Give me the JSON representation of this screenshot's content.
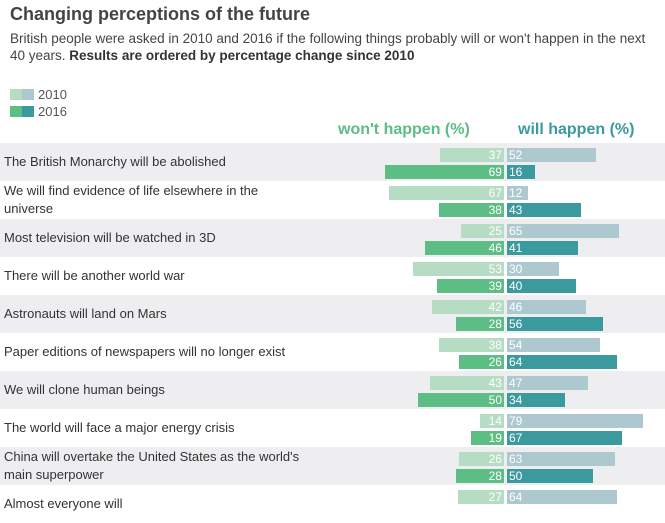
{
  "title": "Changing perceptions of the future",
  "subtitle": "British people were asked in 2010 and 2016 if the following things probably will or won't happen in the next 40 years.",
  "subtitle_bold": "Results are ordered by percentage change since 2010",
  "chart_data": {
    "type": "bar",
    "orientation": "horizontal diverging",
    "legend": [
      "2010",
      "2016"
    ],
    "legend_position": "top-left",
    "column_headers": [
      "won't happen (%)",
      "will happen (%)"
    ],
    "colors": {
      "wont_2010": "#b7dcc4",
      "wont_2016": "#5cbd85",
      "will_2010": "#adc9cf",
      "will_2016": "#3b9a9e"
    },
    "categories": [
      "The British Monarchy will be abolished",
      "We will find evidence of life elsewhere in the universe",
      "Most television will be watched in 3D",
      "There will be another world war",
      "Astronauts will land on Mars",
      "Paper editions of newspapers will no longer exist",
      "We will clone human beings",
      "The world will face a major energy crisis",
      "China will overtake the United States as the world's main superpower",
      "Almost everyone will"
    ],
    "series": [
      {
        "name": "2010",
        "wont": [
          37,
          67,
          25,
          53,
          42,
          38,
          43,
          14,
          26,
          27
        ],
        "will": [
          52,
          12,
          65,
          30,
          46,
          54,
          47,
          79,
          63,
          64
        ]
      },
      {
        "name": "2016",
        "wont": [
          69,
          38,
          46,
          39,
          28,
          26,
          50,
          19,
          28,
          null
        ],
        "will": [
          16,
          43,
          41,
          40,
          56,
          64,
          34,
          67,
          50,
          null
        ]
      }
    ]
  }
}
